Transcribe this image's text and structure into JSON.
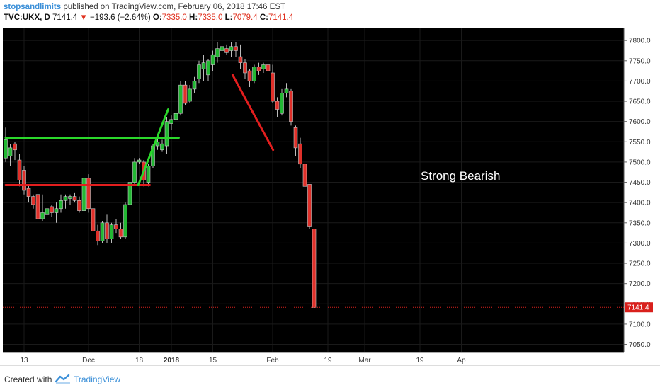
{
  "header": {
    "author": "stopsandlimits",
    "published_text": "published on TradingView.com, February 06, 2018 17:46 EST",
    "symbol": "TVC:UKX, D",
    "last_price": "7141.4",
    "change_arrow": "▼",
    "change": "−193.6 (−2.64%)",
    "o_label": "O:",
    "o_value": "7335.0",
    "h_label": "H:",
    "h_value": "7335.0",
    "l_label": "L:",
    "l_value": "7079.4",
    "c_label": "C:",
    "c_value": "7141.4"
  },
  "footer": {
    "created_with": "Created with",
    "brand": "TradingView"
  },
  "colors": {
    "background": "#000000",
    "up_candle": "#22b833",
    "down_candle": "#e0302a",
    "green_line": "#2bd82b",
    "red_line": "#e31e1e",
    "price_tag": "#d9201c"
  },
  "chart_data": {
    "type": "candlestick",
    "ylim": [
      7030,
      7830
    ],
    "y_ticks": [
      7800,
      7750,
      7700,
      7650,
      7600,
      7550,
      7500,
      7450,
      7400,
      7350,
      7300,
      7250,
      7200,
      7150,
      7100,
      7050
    ],
    "y_tick_labels": [
      "7800.0",
      "7750.0",
      "7700.0",
      "7650.0",
      "7600.0",
      "7550.0",
      "7500.0",
      "7450.0",
      "7400.0",
      "7350.0",
      "7300.0",
      "7250.0",
      "7200.0",
      "7150.0",
      "7100.0",
      "7050.0"
    ],
    "x_labels": [
      {
        "label": "13",
        "index": 4
      },
      {
        "label": "Dec",
        "index": 18
      },
      {
        "label": "18",
        "index": 29
      },
      {
        "label": "2018",
        "index": 36
      },
      {
        "label": "15",
        "index": 45
      },
      {
        "label": "Feb",
        "index": 58
      },
      {
        "label": "19",
        "index": 70
      },
      {
        "label": "Mar",
        "index": 78
      },
      {
        "label": "19",
        "index": 90
      },
      {
        "label": "Ap",
        "index": 99
      }
    ],
    "last_price_label": "7141.4",
    "last_price": 7141.4,
    "annotation": "Strong Bearish",
    "candles": [
      {
        "o": 7510,
        "h": 7585,
        "l": 7500,
        "c": 7555
      },
      {
        "o": 7515,
        "h": 7545,
        "l": 7490,
        "c": 7535
      },
      {
        "o": 7545,
        "h": 7550,
        "l": 7505,
        "c": 7530
      },
      {
        "o": 7505,
        "h": 7520,
        "l": 7440,
        "c": 7455
      },
      {
        "o": 7480,
        "h": 7490,
        "l": 7420,
        "c": 7430
      },
      {
        "o": 7435,
        "h": 7445,
        "l": 7400,
        "c": 7415
      },
      {
        "o": 7415,
        "h": 7420,
        "l": 7385,
        "c": 7395
      },
      {
        "o": 7420,
        "h": 7420,
        "l": 7355,
        "c": 7360
      },
      {
        "o": 7360,
        "h": 7420,
        "l": 7355,
        "c": 7375
      },
      {
        "o": 7370,
        "h": 7400,
        "l": 7360,
        "c": 7385
      },
      {
        "o": 7390,
        "h": 7395,
        "l": 7365,
        "c": 7375
      },
      {
        "o": 7375,
        "h": 7400,
        "l": 7350,
        "c": 7385
      },
      {
        "o": 7385,
        "h": 7420,
        "l": 7375,
        "c": 7405
      },
      {
        "o": 7405,
        "h": 7420,
        "l": 7385,
        "c": 7415
      },
      {
        "o": 7410,
        "h": 7420,
        "l": 7395,
        "c": 7415
      },
      {
        "o": 7415,
        "h": 7425,
        "l": 7400,
        "c": 7405
      },
      {
        "o": 7405,
        "h": 7415,
        "l": 7375,
        "c": 7380
      },
      {
        "o": 7380,
        "h": 7470,
        "l": 7375,
        "c": 7460
      },
      {
        "o": 7460,
        "h": 7470,
        "l": 7375,
        "c": 7385
      },
      {
        "o": 7385,
        "h": 7420,
        "l": 7325,
        "c": 7330
      },
      {
        "o": 7330,
        "h": 7345,
        "l": 7295,
        "c": 7305
      },
      {
        "o": 7305,
        "h": 7355,
        "l": 7300,
        "c": 7350
      },
      {
        "o": 7350,
        "h": 7370,
        "l": 7300,
        "c": 7310
      },
      {
        "o": 7310,
        "h": 7350,
        "l": 7300,
        "c": 7345
      },
      {
        "o": 7345,
        "h": 7360,
        "l": 7325,
        "c": 7335
      },
      {
        "o": 7335,
        "h": 7350,
        "l": 7310,
        "c": 7315
      },
      {
        "o": 7315,
        "h": 7400,
        "l": 7310,
        "c": 7395
      },
      {
        "o": 7395,
        "h": 7460,
        "l": 7390,
        "c": 7450
      },
      {
        "o": 7450,
        "h": 7510,
        "l": 7445,
        "c": 7500
      },
      {
        "o": 7500,
        "h": 7510,
        "l": 7495,
        "c": 7505
      },
      {
        "o": 7500,
        "h": 7505,
        "l": 7440,
        "c": 7455
      },
      {
        "o": 7450,
        "h": 7495,
        "l": 7440,
        "c": 7490
      },
      {
        "o": 7490,
        "h": 7545,
        "l": 7485,
        "c": 7540
      },
      {
        "o": 7540,
        "h": 7560,
        "l": 7530,
        "c": 7550
      },
      {
        "o": 7530,
        "h": 7555,
        "l": 7525,
        "c": 7545
      },
      {
        "o": 7540,
        "h": 7610,
        "l": 7520,
        "c": 7600
      },
      {
        "o": 7595,
        "h": 7615,
        "l": 7580,
        "c": 7605
      },
      {
        "o": 7605,
        "h": 7630,
        "l": 7590,
        "c": 7620
      },
      {
        "o": 7620,
        "h": 7700,
        "l": 7615,
        "c": 7690
      },
      {
        "o": 7690,
        "h": 7700,
        "l": 7640,
        "c": 7645
      },
      {
        "o": 7650,
        "h": 7690,
        "l": 7645,
        "c": 7680
      },
      {
        "o": 7680,
        "h": 7710,
        "l": 7670,
        "c": 7700
      },
      {
        "o": 7705,
        "h": 7750,
        "l": 7695,
        "c": 7740
      },
      {
        "o": 7730,
        "h": 7765,
        "l": 7700,
        "c": 7745
      },
      {
        "o": 7715,
        "h": 7755,
        "l": 7700,
        "c": 7750
      },
      {
        "o": 7740,
        "h": 7775,
        "l": 7725,
        "c": 7765
      },
      {
        "o": 7760,
        "h": 7795,
        "l": 7745,
        "c": 7780
      },
      {
        "o": 7775,
        "h": 7795,
        "l": 7755,
        "c": 7785
      },
      {
        "o": 7780,
        "h": 7790,
        "l": 7765,
        "c": 7770
      },
      {
        "o": 7775,
        "h": 7795,
        "l": 7760,
        "c": 7785
      },
      {
        "o": 7785,
        "h": 7795,
        "l": 7760,
        "c": 7775
      },
      {
        "o": 7760,
        "h": 7790,
        "l": 7730,
        "c": 7745
      },
      {
        "o": 7745,
        "h": 7755,
        "l": 7705,
        "c": 7720
      },
      {
        "o": 7725,
        "h": 7730,
        "l": 7685,
        "c": 7700
      },
      {
        "o": 7700,
        "h": 7740,
        "l": 7695,
        "c": 7735
      },
      {
        "o": 7735,
        "h": 7745,
        "l": 7715,
        "c": 7725
      },
      {
        "o": 7730,
        "h": 7745,
        "l": 7720,
        "c": 7740
      },
      {
        "o": 7740,
        "h": 7750,
        "l": 7715,
        "c": 7725
      }
    ],
    "candles_late": [
      {
        "o": 7720,
        "h": 7740,
        "l": 7645,
        "c": 7650
      },
      {
        "o": 7650,
        "h": 7660,
        "l": 7610,
        "c": 7630
      },
      {
        "o": 7620,
        "h": 7680,
        "l": 7615,
        "c": 7670
      },
      {
        "o": 7670,
        "h": 7695,
        "l": 7660,
        "c": 7680
      },
      {
        "o": 7675,
        "h": 7680,
        "l": 7590,
        "c": 7600
      },
      {
        "o": 7585,
        "h": 7590,
        "l": 7515,
        "c": 7535
      },
      {
        "o": 7545,
        "h": 7560,
        "l": 7485,
        "c": 7495
      },
      {
        "o": 7495,
        "h": 7500,
        "l": 7430,
        "c": 7440
      },
      {
        "o": 7445,
        "h": 7445,
        "l": 7335,
        "c": 7340
      },
      {
        "o": 7335,
        "h": 7335,
        "l": 7079,
        "c": 7141
      }
    ],
    "trend_lines": [
      {
        "name": "green-horizontal",
        "x1": 0,
        "y1": 7560,
        "x2": 37.6,
        "y2": 7560,
        "color": "green"
      },
      {
        "name": "red-horizontal",
        "x1": 0,
        "y1": 7443,
        "x2": 31.3,
        "y2": 7443,
        "color": "red"
      },
      {
        "name": "green-rising",
        "x1": 28.8,
        "y1": 7443,
        "x2": 35.3,
        "y2": 7630,
        "color": "green"
      },
      {
        "name": "red-falling",
        "x1": 49.3,
        "y1": 7715,
        "x2": 58.1,
        "y2": 7530,
        "color": "red"
      }
    ]
  }
}
